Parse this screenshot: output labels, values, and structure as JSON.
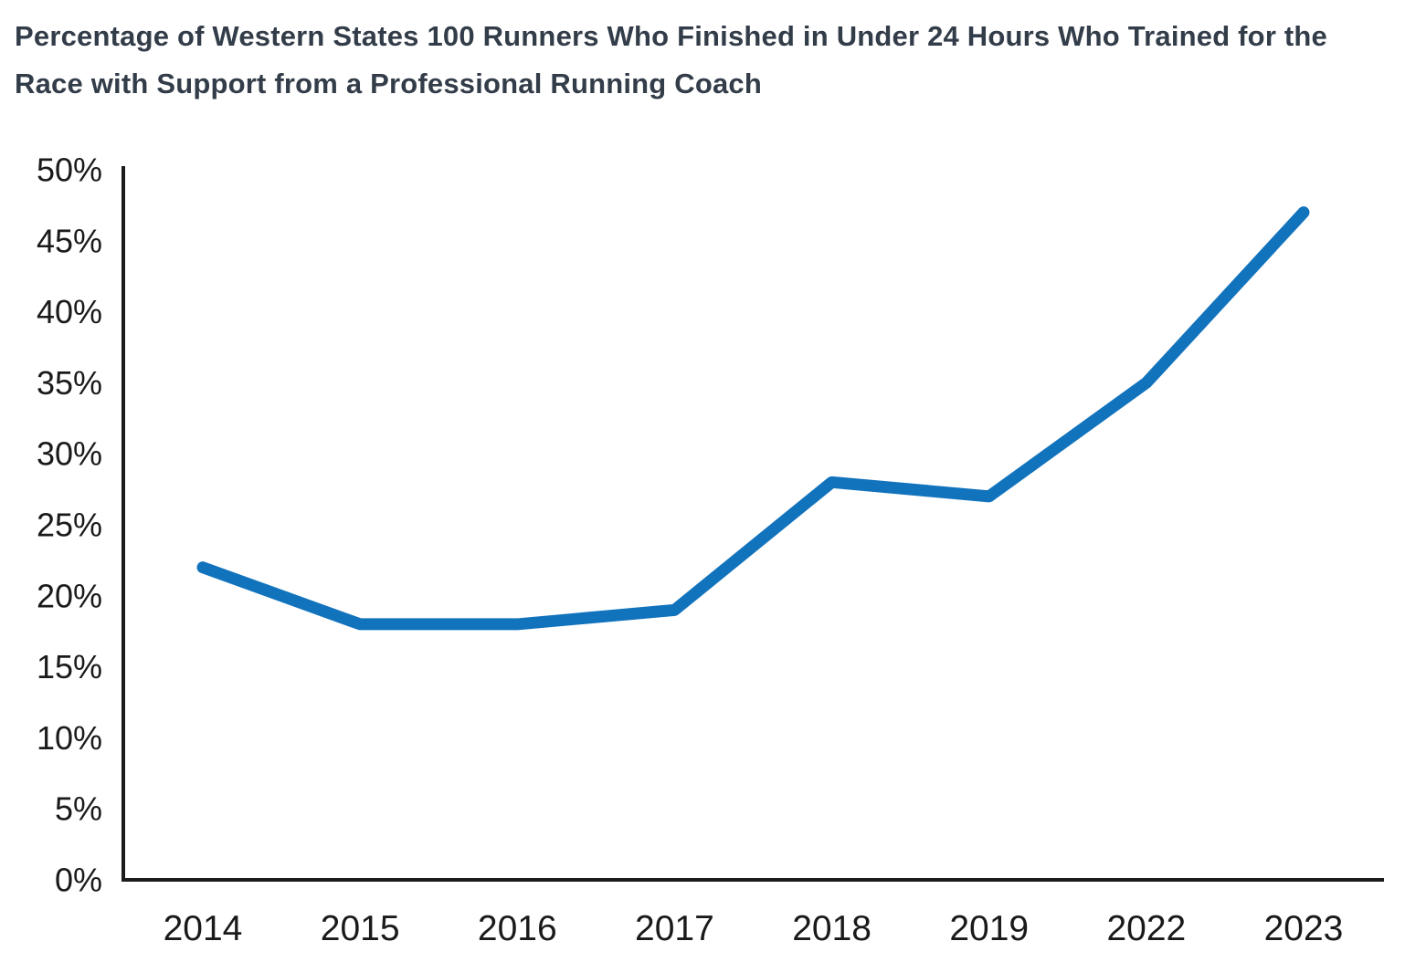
{
  "header": {
    "title_lines": [
      "Percentage of Western States 100 Runners Who Finished in Under 24 Hours Who Trained for the",
      "Race with Support from a Professional Running Coach"
    ]
  },
  "chart_data": {
    "type": "line",
    "title": "Percentage of Western States 100 Runners Who Finished in Under 24 Hours Who Trained for the Race with Support from a Professional Running Coach",
    "categories": [
      "2014",
      "2015",
      "2016",
      "2017",
      "2018",
      "2019",
      "2022",
      "2023"
    ],
    "values": [
      22,
      18,
      18,
      19,
      28,
      27,
      35,
      47
    ],
    "unit": "%",
    "xlabel": "",
    "ylabel": "",
    "ylim": [
      0,
      50
    ],
    "ytick_step": 5,
    "ytick_labels": [
      "0%",
      "5%",
      "10%",
      "15%",
      "20%",
      "25%",
      "30%",
      "35%",
      "40%",
      "45%",
      "50%"
    ],
    "grid": false,
    "legend": "none",
    "line_color": "#1273bd",
    "axis_color": "#1c1c1c",
    "tick_text_color": "#1a1a1a",
    "title_color": "#333d49"
  }
}
